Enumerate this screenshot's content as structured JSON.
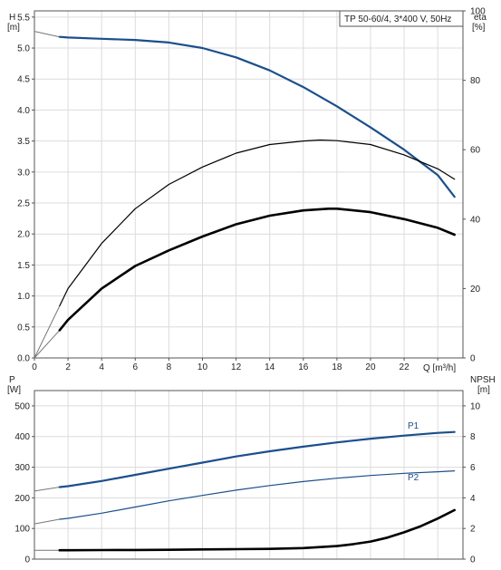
{
  "chart_data": [
    {
      "type": "line",
      "title": "TP 50-60/4, 3*400 V, 50Hz",
      "xlabel": "Q [m³/h]",
      "xlim": [
        0,
        25.5
      ],
      "xticks": [
        0,
        2,
        4,
        6,
        8,
        10,
        12,
        14,
        16,
        18,
        20,
        22,
        24
      ],
      "left_axis": {
        "label_line1": "H",
        "label_line2": "[m]",
        "lim": [
          0,
          5.6
        ],
        "ticks": [
          "0.0",
          "0.5",
          "1.0",
          "1.5",
          "2.0",
          "2.5",
          "3.0",
          "3.5",
          "4.0",
          "4.5",
          "5.0",
          "5.5"
        ]
      },
      "right_axis": {
        "label_line1": "eta",
        "label_line2": "[%]",
        "lim": [
          0,
          100
        ],
        "ticks": [
          0,
          20,
          40,
          60,
          80,
          100
        ]
      },
      "grid": true,
      "series": [
        {
          "axis": "left",
          "color": "#1b4f8c",
          "width": 2.2,
          "x": [
            1.5,
            2,
            4,
            6,
            8,
            10,
            12,
            14,
            16,
            18,
            20,
            22,
            24,
            25
          ],
          "y": [
            5.18,
            5.17,
            5.15,
            5.13,
            5.09,
            5.0,
            4.85,
            4.64,
            4.37,
            4.06,
            3.72,
            3.36,
            2.95,
            2.6
          ]
        },
        {
          "axis": "right",
          "color": "#000000",
          "width": 1.2,
          "x": [
            1.5,
            2,
            4,
            6,
            8,
            10,
            12,
            14,
            16,
            17,
            18,
            20,
            22,
            24,
            25
          ],
          "y": [
            15,
            20,
            33,
            43,
            50,
            55,
            59,
            61.5,
            62.5,
            62.8,
            62.6,
            61.5,
            58.5,
            54.5,
            51.5
          ]
        },
        {
          "axis": "right",
          "color": "#000000",
          "width": 2.6,
          "x": [
            1.5,
            2,
            4,
            6,
            8,
            10,
            12,
            14,
            16,
            17.5,
            18,
            20,
            22,
            24,
            25
          ],
          "y": [
            8,
            11,
            20,
            26.5,
            31,
            35,
            38.5,
            41,
            42.5,
            43,
            43,
            42,
            40,
            37.5,
            35.5
          ]
        }
      ],
      "extensions": [
        {
          "axis": "left",
          "color": "#777777",
          "x": [
            0,
            1.5
          ],
          "y": [
            5.27,
            5.18
          ]
        },
        {
          "axis": "right",
          "color": "#777777",
          "x": [
            0,
            1.5
          ],
          "y": [
            0,
            15
          ]
        },
        {
          "axis": "right",
          "color": "#777777",
          "x": [
            0,
            1.5
          ],
          "y": [
            0,
            8
          ]
        }
      ]
    },
    {
      "type": "line",
      "xlim": [
        0,
        25.5
      ],
      "left_axis": {
        "label_line1": "P",
        "label_line2": "[W]",
        "lim": [
          0,
          550
        ],
        "ticks": [
          0,
          100,
          200,
          300,
          400,
          500
        ]
      },
      "right_axis": {
        "label_line1": "NPSH",
        "label_line2": "[m]",
        "lim": [
          0,
          11
        ],
        "ticks": [
          0,
          2,
          4,
          6,
          8,
          10
        ]
      },
      "grid": true,
      "series": [
        {
          "name": "P1",
          "axis": "left",
          "color": "#1b4f8c",
          "width": 2.2,
          "x": [
            1.5,
            2,
            4,
            6,
            8,
            10,
            12,
            14,
            16,
            18,
            20,
            22,
            24,
            25
          ],
          "y": [
            235,
            238,
            255,
            275,
            295,
            315,
            335,
            352,
            367,
            381,
            393,
            403,
            412,
            415
          ]
        },
        {
          "name": "P2",
          "axis": "left",
          "color": "#1b4f8c",
          "width": 1.2,
          "x": [
            1.5,
            2,
            4,
            6,
            8,
            10,
            12,
            14,
            16,
            18,
            20,
            22,
            24,
            25
          ],
          "y": [
            130,
            133,
            150,
            170,
            190,
            208,
            225,
            240,
            253,
            264,
            273,
            280,
            285,
            288
          ]
        },
        {
          "axis": "right",
          "color": "#000000",
          "width": 2.6,
          "x": [
            1.5,
            2,
            4,
            6,
            8,
            10,
            12,
            14,
            16,
            18,
            19,
            20,
            21,
            22,
            23,
            24,
            25
          ],
          "y": [
            0.58,
            0.58,
            0.59,
            0.6,
            0.61,
            0.63,
            0.65,
            0.67,
            0.72,
            0.85,
            0.98,
            1.15,
            1.4,
            1.75,
            2.15,
            2.65,
            3.2
          ]
        }
      ],
      "extensions": [
        {
          "axis": "left",
          "color": "#777777",
          "x": [
            0,
            1.5
          ],
          "y": [
            222,
            235
          ]
        },
        {
          "axis": "left",
          "color": "#777777",
          "x": [
            0,
            1.5
          ],
          "y": [
            115,
            130
          ]
        },
        {
          "axis": "right",
          "color": "#777777",
          "x": [
            0,
            1.5
          ],
          "y": [
            0.58,
            0.58
          ]
        }
      ]
    }
  ]
}
